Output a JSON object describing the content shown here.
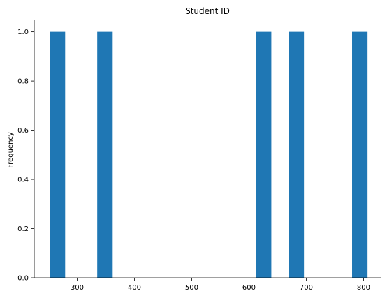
{
  "chart_data": {
    "type": "histogram",
    "title": "Student ID",
    "xlabel": "",
    "ylabel": "Frequency",
    "xlim": [
      225,
      830
    ],
    "ylim": [
      0,
      1.05
    ],
    "x_ticks": [
      300,
      400,
      500,
      600,
      700,
      800
    ],
    "y_ticks": [
      0.0,
      0.2,
      0.4,
      0.6,
      0.8,
      1.0
    ],
    "x_tick_labels": [
      "300",
      "400",
      "500",
      "600",
      "700",
      "800"
    ],
    "y_tick_labels": [
      "0.0",
      "0.2",
      "0.4",
      "0.6",
      "0.8",
      "1.0"
    ],
    "bar_color": "#1f77b4",
    "grid": false,
    "bins": [
      {
        "x0": 252,
        "x1": 279,
        "count": 1
      },
      {
        "x0": 335,
        "x1": 362,
        "count": 1
      },
      {
        "x0": 612,
        "x1": 639,
        "count": 1
      },
      {
        "x0": 669,
        "x1": 696,
        "count": 1
      },
      {
        "x0": 780,
        "x1": 807,
        "count": 1
      }
    ]
  }
}
